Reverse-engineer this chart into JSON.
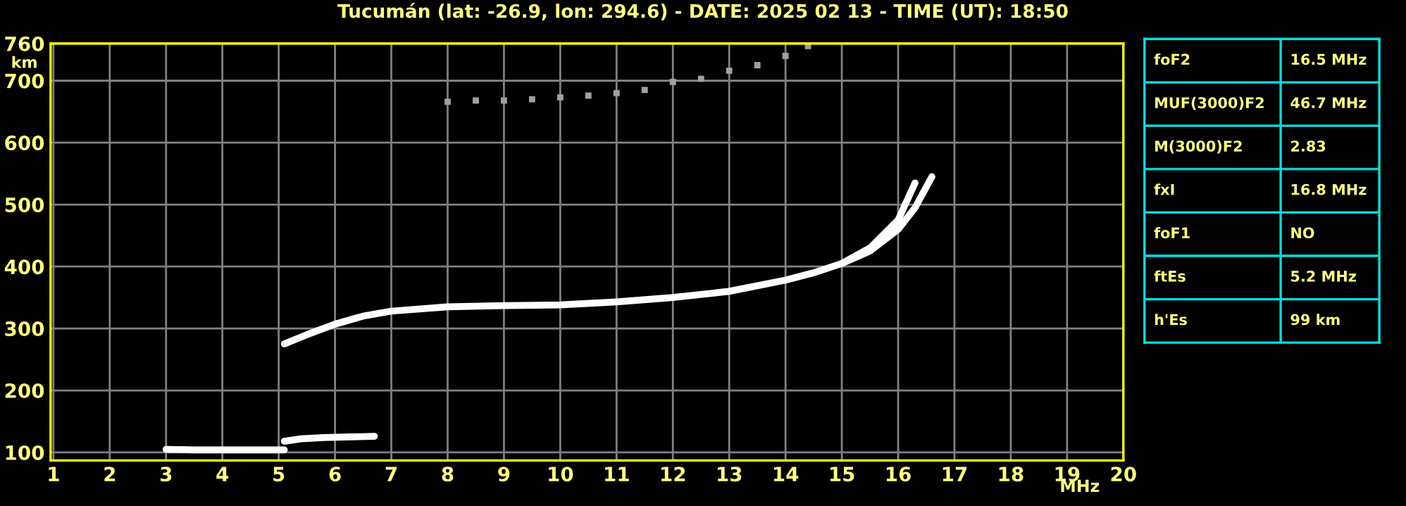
{
  "chart_data": [
    {
      "type": "line",
      "title": "Tucumán (lat: -26.9, lon: 294.6) - DATE: 2025 02 13 - TIME (UT): 18:50",
      "xlabel": "MHz",
      "ylabel": "km",
      "xlim": [
        0.95,
        20
      ],
      "xticks": [
        1,
        2,
        3,
        4,
        5,
        6,
        7,
        8,
        9,
        10,
        11,
        12,
        13,
        14,
        15,
        16,
        17,
        18,
        19,
        20
      ],
      "ylim": [
        87,
        760
      ],
      "yticks": [
        100,
        200,
        300,
        400,
        500,
        600,
        700,
        760
      ],
      "grid": true,
      "legend": false,
      "series": [
        {
          "type": "line",
          "color": "#ffffff",
          "marker": "none",
          "line_style": "solid",
          "x": [
            3.0,
            3.5,
            4.0,
            4.5,
            5.1
          ],
          "values": [
            105,
            104,
            104,
            104,
            104
          ]
        },
        {
          "type": "line",
          "color": "#ffffff",
          "marker": "none",
          "line_style": "solid",
          "x": [
            5.1,
            5.4,
            5.8,
            6.3,
            6.7
          ],
          "values": [
            118,
            122,
            124,
            125,
            126
          ]
        },
        {
          "type": "line",
          "color": "#ffffff",
          "marker": "none",
          "line_style": "solid",
          "x": [
            5.1,
            5.5,
            6.0,
            6.5,
            7.0,
            8.0,
            9.0,
            10.0,
            11.0,
            12.0,
            13.0,
            14.0,
            14.5,
            15.0,
            15.5,
            16.0,
            16.3
          ],
          "values": [
            275,
            290,
            307,
            320,
            328,
            335,
            337,
            338,
            343,
            350,
            360,
            378,
            390,
            405,
            430,
            475,
            535
          ]
        },
        {
          "type": "line",
          "color": "#ffffff",
          "marker": "none",
          "line_style": "solid",
          "x": [
            15.0,
            15.5,
            16.0,
            16.3,
            16.6
          ],
          "values": [
            405,
            425,
            460,
            495,
            545
          ]
        },
        {
          "type": "scatter",
          "color": "#a0a0a0",
          "marker": "square",
          "x": [
            8.0,
            8.5,
            9.0,
            9.5,
            10.0,
            10.5,
            11.0,
            11.5,
            12.0,
            12.5,
            13.0,
            13.5,
            14.0,
            14.4
          ],
          "values": [
            666,
            668,
            668,
            670,
            673,
            676,
            680,
            685,
            698,
            703,
            716,
            725,
            740,
            756
          ]
        }
      ]
    },
    {
      "type": "other",
      "annotations": [
        "foF2",
        "16.5 MHz",
        "MUF(3000)F2",
        "46.7 MHz",
        "M(3000)F2",
        "2.83",
        "fxI",
        "16.8 MHz",
        "foF1",
        "NO",
        "ftEs",
        "5.2 MHz",
        "h'Es",
        "99 km"
      ]
    }
  ]
}
